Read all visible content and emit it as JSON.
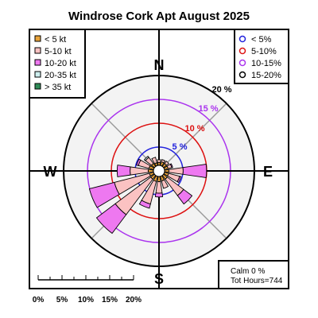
{
  "chart_data": {
    "type": "windrose",
    "title": "Windrose  Cork Apt August 2025",
    "compass": {
      "n": "N",
      "e": "E",
      "s": "S",
      "w": "W"
    },
    "speed_legend": [
      {
        "label": "< 5  kt",
        "color": "#e8a33a"
      },
      {
        "label": "5-10 kt",
        "color": "#fbc2c2"
      },
      {
        "label": "10-20 kt",
        "color": "#ee78f0"
      },
      {
        "label": "20-35 kt",
        "color": "#cdeeee"
      },
      {
        "label": "> 35 kt",
        "color": "#2e8b57"
      }
    ],
    "ring_legend": [
      {
        "label": "< 5%",
        "color": "#2222dd"
      },
      {
        "label": "5-10%",
        "color": "#dd1111"
      },
      {
        "label": "10-15%",
        "color": "#aa33ee"
      },
      {
        "label": "15-20%",
        "color": "#000000"
      }
    ],
    "rings": [
      {
        "pct": 5,
        "label": "5 %",
        "color": "#2222dd"
      },
      {
        "pct": 10,
        "label": "10 %",
        "color": "#dd1111"
      },
      {
        "pct": 15,
        "label": "15 %",
        "color": "#aa33ee"
      },
      {
        "pct": 20,
        "label": "20 %",
        "color": "#000000"
      }
    ],
    "directions": [
      "N",
      "NNE",
      "NE",
      "ENE",
      "E",
      "ESE",
      "SE",
      "SSE",
      "S",
      "SSW",
      "SW",
      "WSW",
      "W",
      "WNW",
      "NW",
      "NNW"
    ],
    "unit": "% of hours",
    "series": [
      {
        "name": "< 5  kt",
        "values": [
          0.6,
          0.8,
          0.8,
          0.8,
          0.9,
          0.9,
          1.0,
          1.0,
          1.1,
          1.1,
          1.0,
          0.9,
          1.1,
          1.0,
          0.8,
          0.6
        ]
      },
      {
        "name": "5-10 kt",
        "values": [
          0.6,
          0.5,
          0.6,
          0.8,
          3.0,
          2.4,
          4.3,
          1.6,
          2.4,
          4.9,
          9.3,
          7.6,
          3.8,
          2.3,
          1.6,
          1.2
        ]
      },
      {
        "name": "10-20 kt",
        "values": [
          0.0,
          0.0,
          0.0,
          0.2,
          4.9,
          0.3,
          2.2,
          0.0,
          0.8,
          0.9,
          4.9,
          5.4,
          2.7,
          0.4,
          0.0,
          0.0
        ]
      },
      {
        "name": "20-35 kt",
        "values": [
          0,
          0,
          0,
          0,
          0,
          0,
          0,
          0,
          0,
          0,
          0,
          0,
          0,
          0,
          0.3,
          0
        ]
      },
      {
        "name": "> 35 kt",
        "values": [
          0,
          0,
          0,
          0,
          0,
          0,
          0,
          0,
          0,
          0,
          0,
          0,
          0,
          0,
          0,
          0
        ]
      }
    ],
    "calm": "Calm 0 %",
    "total": "Tot Hours=744",
    "scale_labels": [
      "0%",
      "5%",
      "10%",
      "15%",
      "20%"
    ]
  }
}
